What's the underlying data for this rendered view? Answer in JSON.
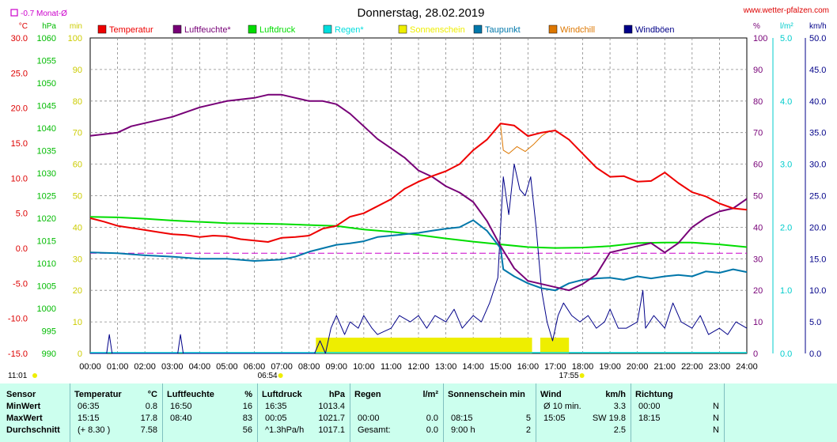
{
  "title": "Donnerstag, 28.02.2019",
  "site": "www.wetter-pfalzen.com",
  "monat_label": "-0.7 Monat-Ø",
  "colors": {
    "temperatur": "#ee0000",
    "luftfeuchte": "#770077",
    "luftdruck": "#00dd00",
    "regen": "#00dddd",
    "sonnenschein": "#eeee00",
    "taupunkt": "#0077aa",
    "windchill": "#dd7700",
    "windboeen": "#000088"
  },
  "chart_data": {
    "type": "line",
    "x_axis": {
      "unit": "Uhrzeit",
      "range": [
        "00:00",
        "24:00"
      ],
      "ticks": [
        "00:00",
        "01:00",
        "02:00",
        "03:00",
        "04:00",
        "05:00",
        "06:00",
        "07:00",
        "08:00",
        "09:00",
        "10:00",
        "11:00",
        "12:00",
        "13:00",
        "14:00",
        "15:00",
        "16:00",
        "17:00",
        "18:00",
        "19:00",
        "20:00",
        "21:00",
        "22:00",
        "23:00",
        "24:00"
      ]
    },
    "markers": {
      "sunrise": "06:54",
      "sunset": "17:55",
      "day_length": "11:01"
    },
    "axes": [
      {
        "unit": "°C",
        "range": [
          -15,
          30
        ],
        "ticks": [
          "30.0",
          "25.0",
          "20.0",
          "15.0",
          "10.0",
          "5.0",
          "0.0",
          "-5.0",
          "-10.0",
          "-15.0"
        ]
      },
      {
        "unit": "hPa",
        "range": [
          990,
          1060
        ],
        "ticks": [
          "1060",
          "1055",
          "1050",
          "1045",
          "1040",
          "1035",
          "1030",
          "1025",
          "1020",
          "1015",
          "1010",
          "1005",
          "1000",
          "995",
          "990"
        ]
      },
      {
        "unit": "min",
        "range": [
          0,
          100
        ],
        "ticks": [
          "100",
          "90",
          "80",
          "70",
          "60",
          "50",
          "40",
          "30",
          "20",
          "10",
          "0"
        ]
      },
      {
        "unit": "%",
        "range": [
          0,
          100
        ],
        "ticks": [
          "100",
          "90",
          "80",
          "70",
          "60",
          "50",
          "40",
          "30",
          "20",
          "10",
          "0"
        ]
      },
      {
        "unit": "l/m²",
        "range": [
          0,
          5
        ],
        "ticks": [
          "5.0",
          "4.0",
          "3.0",
          "2.0",
          "1.0",
          "0.0"
        ]
      },
      {
        "unit": "km/h",
        "range": [
          0,
          50
        ],
        "ticks": [
          "50.0",
          "45.0",
          "40.0",
          "35.0",
          "30.0",
          "25.0",
          "20.0",
          "15.0",
          "10.0",
          "5.0",
          "0.0"
        ]
      }
    ],
    "legend": [
      "Temperatur",
      "Luftfeuchte*",
      "Luftdruck",
      "Regen*",
      "Sonnenschein",
      "Taupunkt",
      "Windchill",
      "Windböen"
    ],
    "series": {
      "temperatur": {
        "axis": "°C",
        "points": [
          [
            0,
            4.3
          ],
          [
            0.5,
            3.8
          ],
          [
            1,
            3.2
          ],
          [
            1.5,
            2.9
          ],
          [
            2,
            2.6
          ],
          [
            2.5,
            2.3
          ],
          [
            3,
            2.0
          ],
          [
            3.5,
            1.9
          ],
          [
            4,
            1.6
          ],
          [
            4.5,
            1.8
          ],
          [
            5,
            1.7
          ],
          [
            5.5,
            1.3
          ],
          [
            6,
            1.1
          ],
          [
            6.5,
            0.9
          ],
          [
            7,
            1.5
          ],
          [
            7.5,
            1.6
          ],
          [
            8,
            1.8
          ],
          [
            8.5,
            2.8
          ],
          [
            9,
            3.2
          ],
          [
            9.5,
            4.5
          ],
          [
            10,
            5.0
          ],
          [
            10.5,
            6.0
          ],
          [
            11,
            7.0
          ],
          [
            11.5,
            8.5
          ],
          [
            12,
            9.5
          ],
          [
            12.5,
            10.3
          ],
          [
            13,
            11.0
          ],
          [
            13.5,
            12.0
          ],
          [
            14,
            14.0
          ],
          [
            14.5,
            15.5
          ],
          [
            15,
            17.8
          ],
          [
            15.5,
            17.5
          ],
          [
            16,
            16.0
          ],
          [
            16.5,
            16.5
          ],
          [
            17,
            16.8
          ],
          [
            17.5,
            15.5
          ],
          [
            18,
            13.5
          ],
          [
            18.5,
            11.5
          ],
          [
            19,
            10.2
          ],
          [
            19.5,
            10.3
          ],
          [
            20,
            9.5
          ],
          [
            20.5,
            9.6
          ],
          [
            21,
            10.8
          ],
          [
            21.5,
            9.3
          ],
          [
            22,
            8.0
          ],
          [
            22.5,
            7.4
          ],
          [
            23,
            6.4
          ],
          [
            23.5,
            5.7
          ],
          [
            24,
            5.5
          ]
        ]
      },
      "windchill": {
        "axis": "°C",
        "points": [
          [
            15,
            17.5
          ],
          [
            15.1,
            14.0
          ],
          [
            15.3,
            13.5
          ],
          [
            15.6,
            14.5
          ],
          [
            15.9,
            13.8
          ],
          [
            16.2,
            14.8
          ],
          [
            16.5,
            16.0
          ],
          [
            16.8,
            16.8
          ]
        ]
      },
      "luftfeuchte": {
        "axis": "%",
        "points": [
          [
            0,
            69
          ],
          [
            1,
            70
          ],
          [
            1.5,
            72
          ],
          [
            2,
            73
          ],
          [
            3,
            75
          ],
          [
            4,
            78
          ],
          [
            5,
            80
          ],
          [
            6,
            81
          ],
          [
            6.5,
            82
          ],
          [
            7,
            82
          ],
          [
            7.5,
            81
          ],
          [
            8,
            80
          ],
          [
            8.5,
            80
          ],
          [
            9,
            79
          ],
          [
            9.5,
            76
          ],
          [
            10,
            72
          ],
          [
            10.5,
            68
          ],
          [
            11,
            65
          ],
          [
            11.5,
            62
          ],
          [
            12,
            58
          ],
          [
            12.5,
            56
          ],
          [
            13,
            53
          ],
          [
            13.5,
            51
          ],
          [
            14,
            48
          ],
          [
            14.5,
            42
          ],
          [
            15,
            34
          ],
          [
            15.5,
            27
          ],
          [
            16,
            23
          ],
          [
            16.5,
            22
          ],
          [
            17,
            21
          ],
          [
            17.5,
            20
          ],
          [
            18,
            22
          ],
          [
            18.5,
            25
          ],
          [
            19,
            32
          ],
          [
            19.5,
            33
          ],
          [
            20,
            34
          ],
          [
            20.5,
            35
          ],
          [
            21,
            32
          ],
          [
            21.5,
            35
          ],
          [
            22,
            40
          ],
          [
            22.5,
            43
          ],
          [
            23,
            45
          ],
          [
            23.5,
            46
          ],
          [
            24,
            49
          ]
        ]
      },
      "luftdruck": {
        "axis": "hPa",
        "points": [
          [
            0,
            1020.3
          ],
          [
            1,
            1020.2
          ],
          [
            2,
            1019.9
          ],
          [
            3,
            1019.5
          ],
          [
            4,
            1019.2
          ],
          [
            5,
            1018.9
          ],
          [
            6,
            1018.8
          ],
          [
            7,
            1018.7
          ],
          [
            8,
            1018.5
          ],
          [
            9,
            1018.3
          ],
          [
            10,
            1017.5
          ],
          [
            11,
            1017.0
          ],
          [
            12,
            1016.3
          ],
          [
            13,
            1015.5
          ],
          [
            14,
            1014.8
          ],
          [
            15,
            1014.2
          ],
          [
            16,
            1013.6
          ],
          [
            17,
            1013.4
          ],
          [
            18,
            1013.5
          ],
          [
            19,
            1013.8
          ],
          [
            20,
            1014.5
          ],
          [
            21,
            1014.6
          ],
          [
            22,
            1014.6
          ],
          [
            23,
            1014.2
          ],
          [
            24,
            1013.6
          ]
        ]
      },
      "taupunkt": {
        "axis": "°C",
        "points": [
          [
            0,
            -0.6
          ],
          [
            1,
            -0.7
          ],
          [
            2,
            -1.0
          ],
          [
            3,
            -1.2
          ],
          [
            4,
            -1.5
          ],
          [
            5,
            -1.5
          ],
          [
            6,
            -1.8
          ],
          [
            7,
            -1.6
          ],
          [
            7.5,
            -1.2
          ],
          [
            8,
            -0.5
          ],
          [
            8.5,
            0.0
          ],
          [
            9,
            0.5
          ],
          [
            9.5,
            0.7
          ],
          [
            10,
            1.0
          ],
          [
            10.5,
            1.6
          ],
          [
            11,
            1.8
          ],
          [
            11.5,
            2.0
          ],
          [
            12,
            2.2
          ],
          [
            12.5,
            2.5
          ],
          [
            13,
            2.8
          ],
          [
            13.5,
            3.0
          ],
          [
            14,
            4.0
          ],
          [
            14.5,
            2.5
          ],
          [
            15,
            0.0
          ],
          [
            15.1,
            -3.0
          ],
          [
            15.5,
            -4.0
          ],
          [
            16,
            -5.0
          ],
          [
            16.5,
            -5.7
          ],
          [
            17,
            -6.0
          ],
          [
            17.5,
            -5.0
          ],
          [
            18,
            -4.5
          ],
          [
            18.5,
            -4.3
          ],
          [
            19,
            -4.2
          ],
          [
            19.5,
            -4.5
          ],
          [
            20,
            -4.0
          ],
          [
            20.5,
            -4.3
          ],
          [
            21,
            -4.0
          ],
          [
            21.5,
            -3.8
          ],
          [
            22,
            -4.0
          ],
          [
            22.5,
            -3.3
          ],
          [
            23,
            -3.5
          ],
          [
            23.5,
            -3.0
          ],
          [
            24,
            -3.4
          ]
        ]
      },
      "windboeen": {
        "axis": "km/h",
        "points": [
          [
            0,
            0
          ],
          [
            0.6,
            0
          ],
          [
            0.7,
            3
          ],
          [
            0.8,
            0
          ],
          [
            3.2,
            0
          ],
          [
            3.3,
            3
          ],
          [
            3.4,
            0
          ],
          [
            8.2,
            0
          ],
          [
            8.4,
            2
          ],
          [
            8.6,
            0
          ],
          [
            8.8,
            4
          ],
          [
            9,
            6
          ],
          [
            9.3,
            3
          ],
          [
            9.5,
            5
          ],
          [
            9.8,
            4
          ],
          [
            10,
            6
          ],
          [
            10.3,
            4
          ],
          [
            10.5,
            3
          ],
          [
            11,
            4
          ],
          [
            11.3,
            6
          ],
          [
            11.7,
            5
          ],
          [
            12,
            6
          ],
          [
            12.3,
            4
          ],
          [
            12.6,
            6
          ],
          [
            13,
            5
          ],
          [
            13.3,
            7
          ],
          [
            13.6,
            4
          ],
          [
            14,
            6
          ],
          [
            14.3,
            5
          ],
          [
            14.6,
            8
          ],
          [
            14.9,
            12
          ],
          [
            15.1,
            28
          ],
          [
            15.3,
            22
          ],
          [
            15.5,
            30
          ],
          [
            15.7,
            26
          ],
          [
            15.9,
            25
          ],
          [
            16.1,
            28
          ],
          [
            16.3,
            20
          ],
          [
            16.5,
            10
          ],
          [
            16.7,
            5
          ],
          [
            16.9,
            2
          ],
          [
            17.1,
            6
          ],
          [
            17.3,
            8
          ],
          [
            17.6,
            6
          ],
          [
            17.9,
            5
          ],
          [
            18.2,
            6
          ],
          [
            18.5,
            4
          ],
          [
            18.8,
            5
          ],
          [
            19,
            7
          ],
          [
            19.3,
            4
          ],
          [
            19.6,
            4
          ],
          [
            20,
            5
          ],
          [
            20.2,
            10
          ],
          [
            20.3,
            4
          ],
          [
            20.6,
            6
          ],
          [
            21,
            4
          ],
          [
            21.3,
            8
          ],
          [
            21.6,
            5
          ],
          [
            22,
            4
          ],
          [
            22.3,
            6
          ],
          [
            22.6,
            3
          ],
          [
            23,
            4
          ],
          [
            23.3,
            3
          ],
          [
            23.6,
            5
          ],
          [
            24,
            4
          ]
        ]
      },
      "sonnenschein": {
        "axis": "min",
        "blocks": [
          [
            8.25,
            16.15
          ],
          [
            16.45,
            17.5
          ]
        ]
      }
    }
  },
  "stats": {
    "rows": [
      "Sensor",
      "MinWert",
      "MaxWert",
      "Durchschnitt"
    ],
    "temperatur": {
      "head": "Temperatur",
      "unit": "°C",
      "min_time": "06:35",
      "min_val": "0.8",
      "max_time": "15:15",
      "max_val": "17.8",
      "avg_note": "(+ 8.30 )",
      "avg_val": "7.58"
    },
    "luftfeuchte": {
      "head": "Luftfeuchte",
      "unit": "%",
      "min_time": "16:50",
      "min_val": "16",
      "max_time": "08:40",
      "max_val": "83",
      "avg_val": "56"
    },
    "luftdruck": {
      "head": "Luftdruck",
      "unit": "hPa",
      "min_time": "16:35",
      "min_val": "1013.4",
      "max_time": "00:05",
      "max_val": "1021.7",
      "avg_note": "^1.3hPa/h",
      "avg_val": "1017.1"
    },
    "regen": {
      "head": "Regen",
      "unit": "l/m²",
      "max_time": "00:00",
      "max_val": "0.0",
      "avg_note": "Gesamt:",
      "avg_val": "0.0"
    },
    "sonnenschein": {
      "head": "Sonnenschein min",
      "max_time": "08:15",
      "max_val": "5",
      "avg_note": "9:00 h",
      "avg_val": "2"
    },
    "wind": {
      "head": "Wind",
      "unit": "km/h",
      "min_time": "Ø 10 min.",
      "min_val": "3.3",
      "max_time": "15:05",
      "max_dir": "SW 19.8",
      "avg_val": "2.5"
    },
    "richtung": {
      "head": "Richtung",
      "min_time": "00:00",
      "min_val": "N",
      "max_time": "18:15",
      "max_val": "N",
      "avg_val": "N"
    }
  }
}
